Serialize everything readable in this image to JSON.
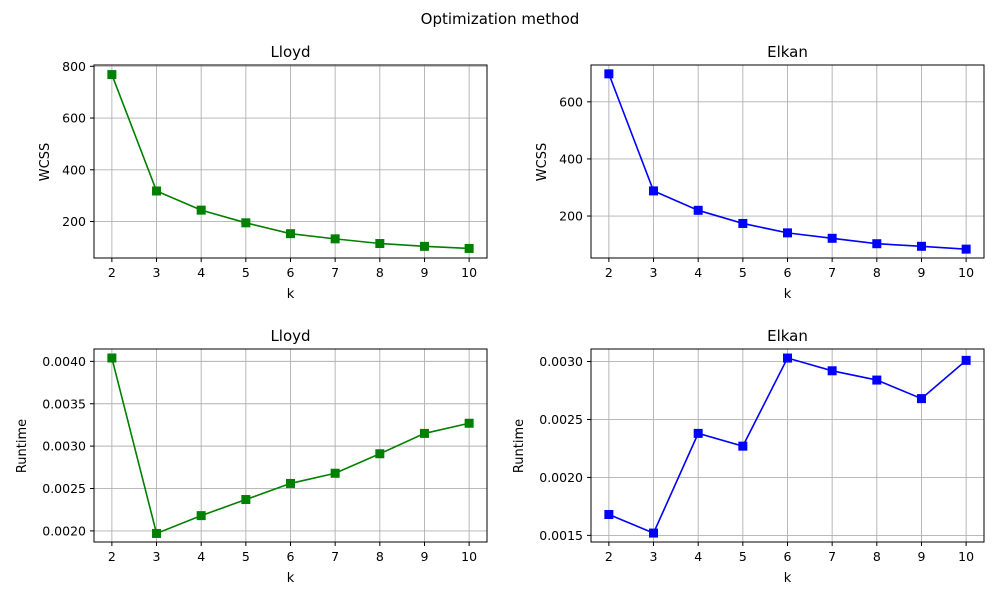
{
  "figure": {
    "suptitle": "Optimization method"
  },
  "chart_data": [
    {
      "type": "line",
      "title": "Lloyd",
      "xlabel": "k",
      "ylabel": "WCSS",
      "x": [
        2,
        3,
        4,
        5,
        6,
        7,
        8,
        9,
        10
      ],
      "values": [
        768,
        318,
        244,
        195,
        153,
        133,
        115,
        104,
        96
      ],
      "ylim": [
        59,
        805
      ],
      "xlim": [
        1.6,
        10.4
      ],
      "yticks": [
        200,
        400,
        600,
        800
      ],
      "ytick_labels": [
        "200",
        "400",
        "600",
        "800"
      ],
      "color": "#008000",
      "marker": "square",
      "grid": true
    },
    {
      "type": "line",
      "title": "Elkan",
      "xlabel": "k",
      "ylabel": "WCSS",
      "x": [
        2,
        3,
        4,
        5,
        6,
        7,
        8,
        9,
        10
      ],
      "values": [
        698,
        288,
        220,
        174,
        141,
        122,
        103,
        94,
        84
      ],
      "ylim": [
        53,
        729
      ],
      "xlim": [
        1.6,
        10.4
      ],
      "yticks": [
        200,
        400,
        600
      ],
      "ytick_labels": [
        "200",
        "400",
        "600"
      ],
      "color": "#0000ff",
      "marker": "square",
      "grid": true
    },
    {
      "type": "line",
      "title": "Lloyd",
      "xlabel": "k",
      "ylabel": "Runtime",
      "x": [
        2,
        3,
        4,
        5,
        6,
        7,
        8,
        9,
        10
      ],
      "values": [
        0.00404,
        0.00197,
        0.00218,
        0.00237,
        0.00256,
        0.00268,
        0.00291,
        0.00315,
        0.00327
      ],
      "ylim": [
        0.001869,
        0.004146
      ],
      "xlim": [
        1.6,
        10.4
      ],
      "yticks": [
        0.002,
        0.0025,
        0.003,
        0.0035,
        0.004
      ],
      "ytick_labels": [
        "0.0020",
        "0.0025",
        "0.0030",
        "0.0035",
        "0.0040"
      ],
      "color": "#008000",
      "marker": "square",
      "grid": true
    },
    {
      "type": "line",
      "title": "Elkan",
      "xlabel": "k",
      "ylabel": "Runtime",
      "x": [
        2,
        3,
        4,
        5,
        6,
        7,
        8,
        9,
        10
      ],
      "values": [
        0.00168,
        0.00152,
        0.00238,
        0.00227,
        0.00303,
        0.00292,
        0.00284,
        0.00268,
        0.00301
      ],
      "ylim": [
        0.001443,
        0.003108
      ],
      "xlim": [
        1.6,
        10.4
      ],
      "yticks": [
        0.0015,
        0.002,
        0.0025,
        0.003
      ],
      "ytick_labels": [
        "0.0015",
        "0.0020",
        "0.0025",
        "0.0030"
      ],
      "color": "#0000ff",
      "marker": "square",
      "grid": true
    }
  ]
}
